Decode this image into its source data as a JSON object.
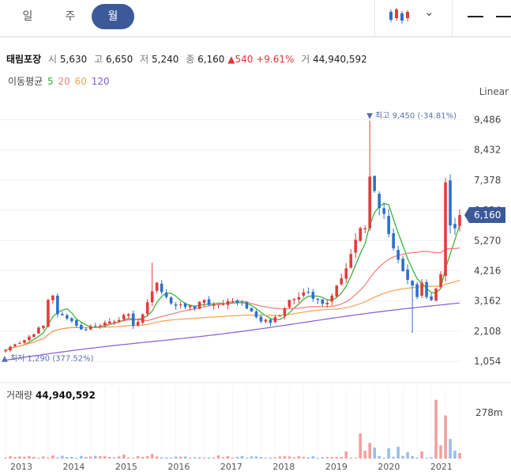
{
  "tabs": [
    {
      "label": "일",
      "active": false
    },
    {
      "label": "주",
      "active": false
    },
    {
      "label": "월",
      "active": true
    }
  ],
  "stock": {
    "name": "태림포장",
    "open_label": "시",
    "open": "5,630",
    "high_label": "고",
    "high": "6,650",
    "low_label": "저",
    "low": "5,240",
    "close_label": "종",
    "close": "6,160",
    "change": "▲540",
    "change_pct": "+9.61%",
    "volume_label": "거",
    "volume": "44,940,592"
  },
  "moving_averages": {
    "label": "이동평균",
    "periods": [
      {
        "value": "5",
        "color": "#2bb12b"
      },
      {
        "value": "20",
        "color": "#f07a7a"
      },
      {
        "value": "60",
        "color": "#f5a050"
      },
      {
        "value": "120",
        "color": "#8a5ad6"
      }
    ]
  },
  "scale_type": "Linear",
  "colors": {
    "up": "#e23c3c",
    "down": "#2f6fcf",
    "ma5": "#2bb12b",
    "ma20": "#f07a7a",
    "ma60": "#f5a050",
    "ma120": "#8a5ad6",
    "accent": "#3c5a9a"
  },
  "chart_data": {
    "type": "candlestick",
    "price_ticks": [
      "9,486",
      "8,432",
      "7,378",
      "6,324",
      "5,270",
      "4,216",
      "3,162",
      "2,108",
      "1,054"
    ],
    "price_tick_values": [
      9486,
      8432,
      7378,
      6324,
      5270,
      4216,
      3162,
      2108,
      1054
    ],
    "ylim": [
      700,
      9800
    ],
    "current_price_label": "6,160",
    "current_price": 6160,
    "high_annotation": "▼ 최고 9,450 (-34.81%)",
    "high_value": 9450,
    "low_annotation": "▲ 최저 1,290 (377.52%)",
    "low_value": 1290,
    "x_ticks": [
      "2013",
      "2014",
      "2015",
      "2016",
      "2017",
      "2018",
      "2019",
      "2020",
      "2021"
    ],
    "volume_label": "거래량",
    "volume_value": "44,940,592",
    "volume_axis_label": "278m",
    "volume_max": 278,
    "anchors": [
      [
        0,
        1450
      ],
      [
        2,
        1650
      ],
      [
        4,
        1800
      ],
      [
        6,
        2000
      ],
      [
        8,
        2300
      ],
      [
        9,
        3200
      ],
      [
        10,
        3350
      ],
      [
        11,
        2700
      ],
      [
        13,
        2550
      ],
      [
        15,
        2300
      ],
      [
        17,
        2150
      ],
      [
        20,
        2300
      ],
      [
        23,
        2450
      ],
      [
        26,
        2700
      ],
      [
        27,
        2300
      ],
      [
        29,
        2700
      ],
      [
        31,
        3500
      ],
      [
        32,
        3800
      ],
      [
        34,
        3300
      ],
      [
        36,
        3000
      ],
      [
        38,
        2950
      ],
      [
        40,
        2900
      ],
      [
        42,
        3200
      ],
      [
        44,
        3050
      ],
      [
        46,
        3050
      ],
      [
        48,
        3150
      ],
      [
        50,
        3100
      ],
      [
        52,
        2800
      ],
      [
        54,
        2450
      ],
      [
        56,
        2400
      ],
      [
        58,
        2650
      ],
      [
        60,
        3200
      ],
      [
        62,
        3300
      ],
      [
        64,
        3450
      ],
      [
        66,
        3200
      ],
      [
        68,
        3100
      ],
      [
        70,
        3700
      ],
      [
        72,
        4300
      ],
      [
        74,
        5300
      ],
      [
        76,
        5700
      ],
      [
        77,
        7500
      ],
      [
        78,
        7000
      ],
      [
        79,
        6400
      ],
      [
        80,
        6200
      ],
      [
        81,
        5500
      ],
      [
        82,
        5000
      ],
      [
        83,
        4600
      ],
      [
        84,
        4200
      ],
      [
        85,
        3900
      ],
      [
        86,
        3700
      ],
      [
        87,
        3300
      ],
      [
        88,
        3800
      ],
      [
        89,
        3300
      ],
      [
        90,
        3200
      ],
      [
        91,
        3600
      ],
      [
        92,
        4100
      ],
      [
        93,
        7300
      ],
      [
        94,
        5800
      ],
      [
        95,
        5700
      ],
      [
        96,
        6160
      ]
    ],
    "spikes": [
      [
        31,
        4500
      ],
      [
        77,
        9450
      ],
      [
        78,
        7200
      ],
      [
        86,
        2050
      ],
      [
        93,
        7450
      ]
    ],
    "volume_spikes": [
      [
        10,
        4
      ],
      [
        25,
        5
      ],
      [
        31,
        6
      ],
      [
        45,
        4
      ],
      [
        62,
        3
      ],
      [
        72,
        9
      ],
      [
        75,
        32
      ],
      [
        76,
        10
      ],
      [
        77,
        20
      ],
      [
        78,
        14
      ],
      [
        81,
        13
      ],
      [
        83,
        15
      ],
      [
        85,
        8
      ],
      [
        88,
        9
      ],
      [
        91,
        75
      ],
      [
        92,
        17
      ],
      [
        93,
        55
      ],
      [
        94,
        25
      ],
      [
        95,
        10
      ],
      [
        96,
        7
      ]
    ]
  }
}
